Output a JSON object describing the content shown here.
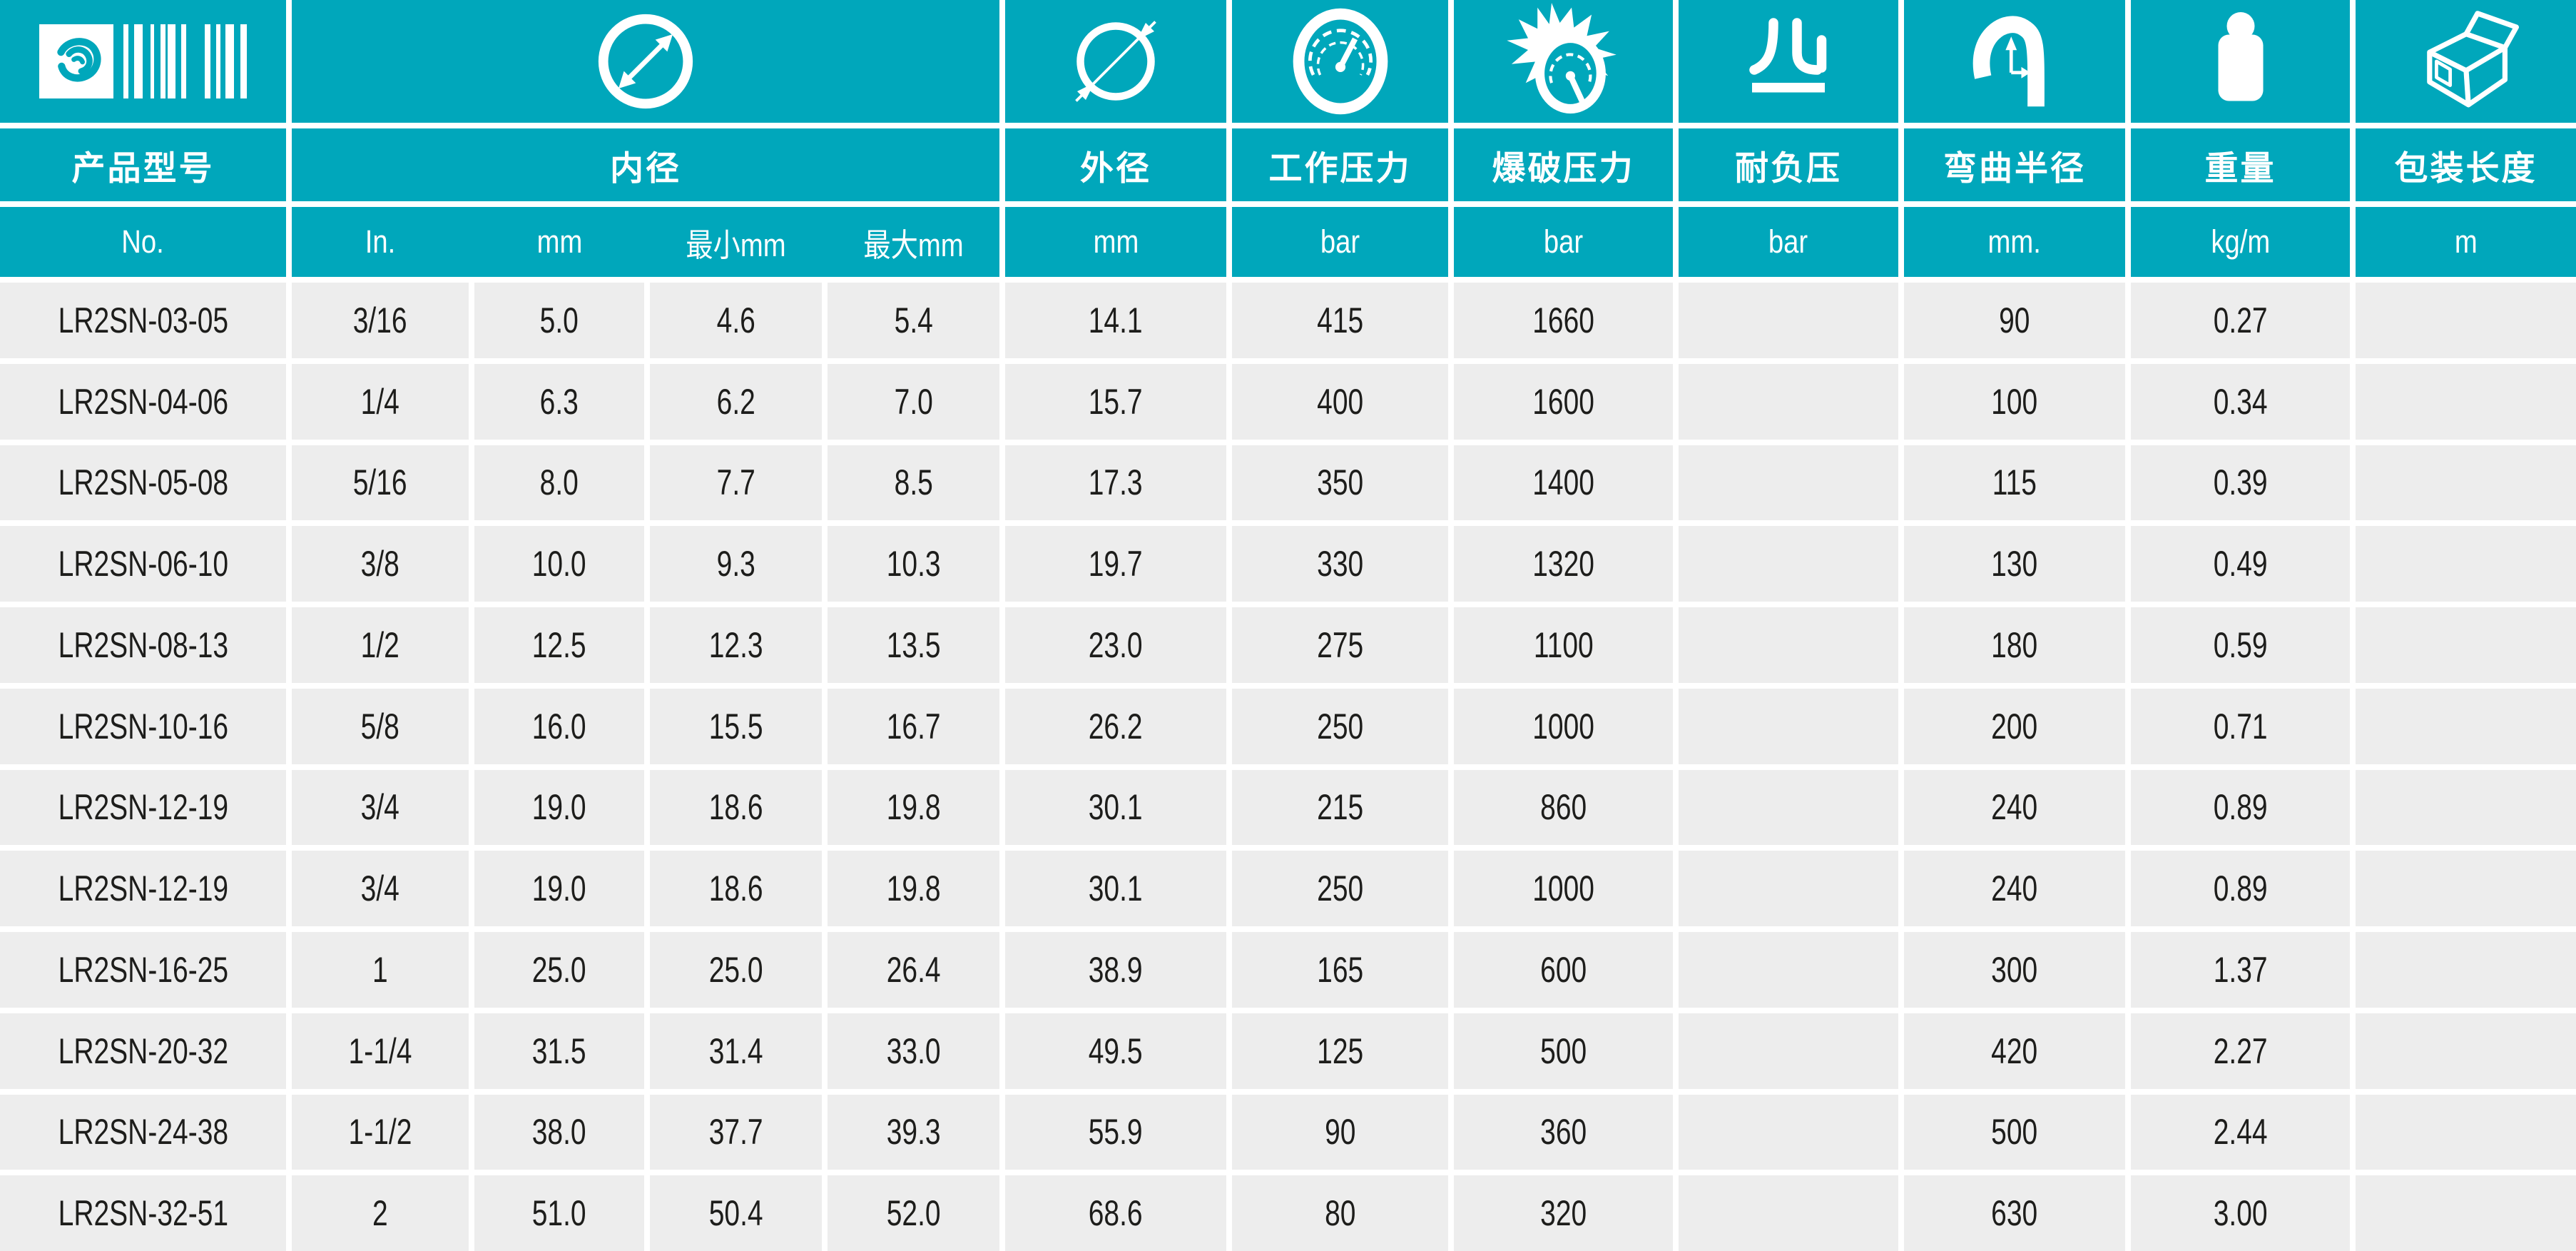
{
  "colors": {
    "teal": "#00a7bb",
    "row_bg": "#ededed",
    "text": "#1d1d1b",
    "header_text": "#ffffff"
  },
  "icons": {
    "logo": "swirl-globe-barcode",
    "inner": "inner-diameter-icon",
    "od": "outer-diameter-icon",
    "wp": "pressure-gauge-icon",
    "bp": "burst-pressure-icon",
    "vac": "vacuum-icon",
    "br": "bend-radius-icon",
    "wt": "weight-icon",
    "len": "package-box-icon"
  },
  "headers": {
    "model": "产品型号",
    "inner": "内径",
    "od": "外径",
    "wp": "工作压力",
    "bp": "爆破压力",
    "vac": "耐负压",
    "br": "弯曲半径",
    "wt": "重量",
    "len": "包装长度"
  },
  "units": {
    "model": "No.",
    "inner": [
      "In.",
      "mm",
      "最小mm",
      "最大mm"
    ],
    "od": "mm",
    "wp": "bar",
    "bp": "bar",
    "vac": "bar",
    "br": "mm.",
    "wt": "kg/m",
    "len": "m"
  },
  "rows": [
    [
      "LR2SN-03-05",
      "3/16",
      "5.0",
      "4.6",
      "5.4",
      "14.1",
      "415",
      "1660",
      "",
      "90",
      "0.27",
      ""
    ],
    [
      "LR2SN-04-06",
      "1/4",
      "6.3",
      "6.2",
      "7.0",
      "15.7",
      "400",
      "1600",
      "",
      "100",
      "0.34",
      ""
    ],
    [
      "LR2SN-05-08",
      "5/16",
      "8.0",
      "7.7",
      "8.5",
      "17.3",
      "350",
      "1400",
      "",
      "115",
      "0.39",
      ""
    ],
    [
      "LR2SN-06-10",
      "3/8",
      "10.0",
      "9.3",
      "10.3",
      "19.7",
      "330",
      "1320",
      "",
      "130",
      "0.49",
      ""
    ],
    [
      "LR2SN-08-13",
      "1/2",
      "12.5",
      "12.3",
      "13.5",
      "23.0",
      "275",
      "1100",
      "",
      "180",
      "0.59",
      ""
    ],
    [
      "LR2SN-10-16",
      "5/8",
      "16.0",
      "15.5",
      "16.7",
      "26.2",
      "250",
      "1000",
      "",
      "200",
      "0.71",
      ""
    ],
    [
      "LR2SN-12-19",
      "3/4",
      "19.0",
      "18.6",
      "19.8",
      "30.1",
      "215",
      "860",
      "",
      "240",
      "0.89",
      ""
    ],
    [
      "LR2SN-12-19",
      "3/4",
      "19.0",
      "18.6",
      "19.8",
      "30.1",
      "250",
      "1000",
      "",
      "240",
      "0.89",
      ""
    ],
    [
      "LR2SN-16-25",
      "1",
      "25.0",
      "25.0",
      "26.4",
      "38.9",
      "165",
      "600",
      "",
      "300",
      "1.37",
      ""
    ],
    [
      "LR2SN-20-32",
      "1-1/4",
      "31.5",
      "31.4",
      "33.0",
      "49.5",
      "125",
      "500",
      "",
      "420",
      "2.27",
      ""
    ],
    [
      "LR2SN-24-38",
      "1-1/2",
      "38.0",
      "37.7",
      "39.3",
      "55.9",
      "90",
      "360",
      "",
      "500",
      "2.44",
      ""
    ],
    [
      "LR2SN-32-51",
      "2",
      "51.0",
      "50.4",
      "52.0",
      "68.6",
      "80",
      "320",
      "",
      "630",
      "3.00",
      ""
    ]
  ]
}
